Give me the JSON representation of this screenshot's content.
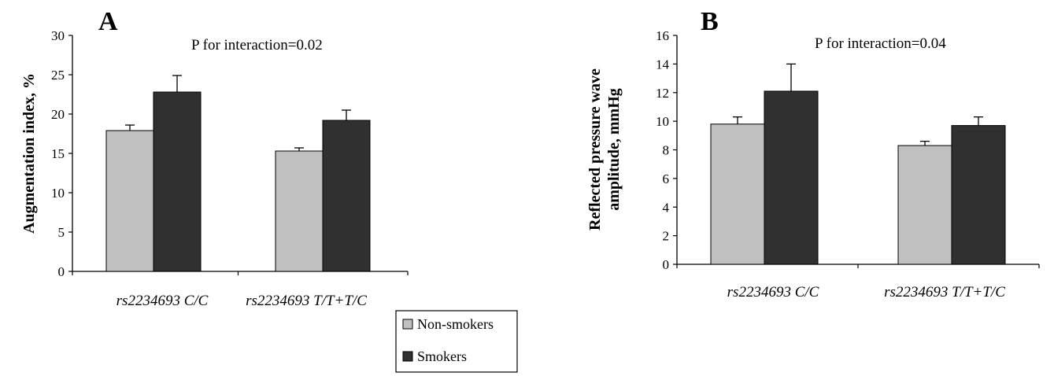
{
  "chart_data": [
    {
      "type": "bar",
      "panel": "A",
      "annotation": "P for interaction=0.02",
      "ylabel": "Augmentation index, %",
      "ylim": [
        0,
        30
      ],
      "yticks": [
        0,
        5,
        10,
        15,
        20,
        25,
        30
      ],
      "categories": [
        "rs2234693 C/C",
        "rs2234693 T/T+T/C"
      ],
      "series": [
        {
          "name": "Non-smokers",
          "color": "#c0c0c0",
          "values": [
            17.9,
            15.3
          ],
          "errors": [
            0.7,
            0.4
          ]
        },
        {
          "name": "Smokers",
          "color": "#303030",
          "values": [
            22.8,
            19.2
          ],
          "errors": [
            2.1,
            1.3
          ]
        }
      ]
    },
    {
      "type": "bar",
      "panel": "B",
      "annotation": "P for interaction=0.04",
      "ylabel_lines": [
        "Reflected pressure wave",
        "amplitude, mmHg"
      ],
      "ylim": [
        0,
        16
      ],
      "yticks": [
        0,
        2,
        4,
        6,
        8,
        10,
        12,
        14,
        16
      ],
      "categories": [
        "rs2234693 C/C",
        "rs2234693 T/T+T/C"
      ],
      "series": [
        {
          "name": "Non-smokers",
          "color": "#c0c0c0",
          "values": [
            9.8,
            8.3
          ],
          "errors": [
            0.5,
            0.3
          ]
        },
        {
          "name": "Smokers",
          "color": "#303030",
          "values": [
            12.1,
            9.7
          ],
          "errors": [
            1.9,
            0.6
          ]
        }
      ]
    }
  ],
  "legend": {
    "items": [
      {
        "label": "Non-smokers",
        "color": "#c0c0c0"
      },
      {
        "label": "Smokers",
        "color": "#303030"
      }
    ]
  }
}
